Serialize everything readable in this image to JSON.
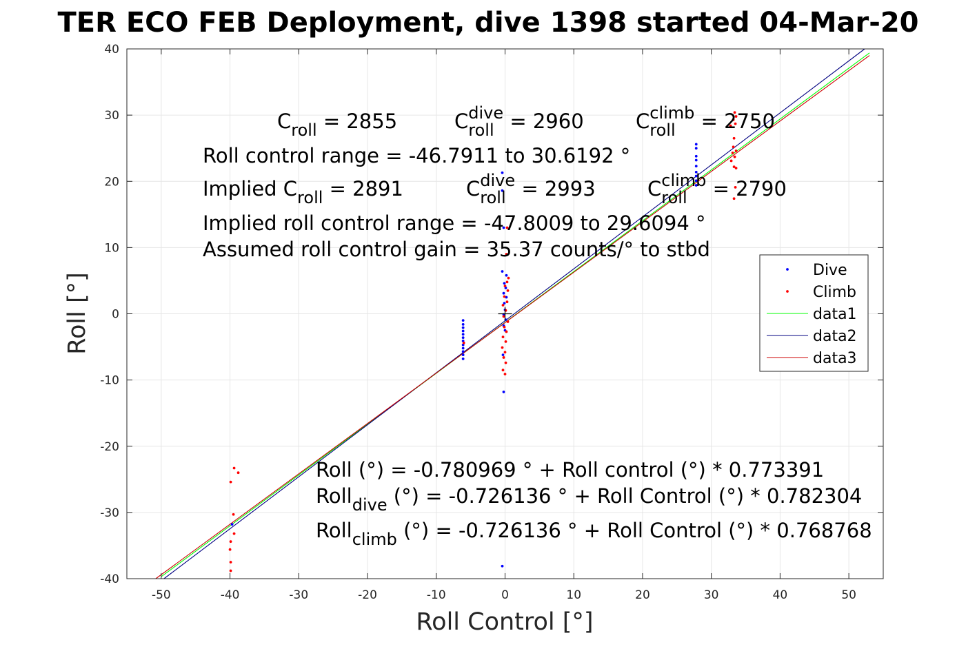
{
  "chart_data": {
    "type": "scatter",
    "title": "TER ECO FEB Deployment, dive 1398 started 04-Mar-20",
    "xlabel": "Roll Control [°]",
    "ylabel": "Roll [°]",
    "xlim": [
      -55,
      55
    ],
    "ylim": [
      -40,
      40
    ],
    "xticks": [
      -50,
      -40,
      -30,
      -20,
      -10,
      0,
      10,
      20,
      30,
      40,
      50
    ],
    "yticks": [
      -40,
      -30,
      -20,
      -10,
      0,
      10,
      20,
      30,
      40
    ],
    "grid": true,
    "legend_position": "right",
    "series": [
      {
        "name": "Dive",
        "kind": "points",
        "color": "#0000ff",
        "points": [
          [
            -6.1,
            -1.0
          ],
          [
            -6.1,
            -1.6
          ],
          [
            -6.1,
            -2.1
          ],
          [
            -6.1,
            -2.6
          ],
          [
            -6.1,
            -3.1
          ],
          [
            -6.1,
            -3.6
          ],
          [
            -6.1,
            -4.1
          ],
          [
            -6.1,
            -4.7
          ],
          [
            -6.1,
            -5.2
          ],
          [
            -6.1,
            -5.7
          ],
          [
            -6.1,
            -6.2
          ],
          [
            -6.1,
            -6.8
          ],
          [
            -0.4,
            21.3
          ],
          [
            -0.4,
            18.6
          ],
          [
            -0.2,
            13.0
          ],
          [
            -0.4,
            6.4
          ],
          [
            0.2,
            5.8
          ],
          [
            -0.1,
            4.6
          ],
          [
            0.1,
            3.9
          ],
          [
            -0.2,
            3.1
          ],
          [
            0.2,
            2.5
          ],
          [
            -0.1,
            1.6
          ],
          [
            0.0,
            0.6
          ],
          [
            -0.2,
            -0.1
          ],
          [
            0.1,
            -0.9
          ],
          [
            -0.2,
            -1.8
          ],
          [
            0.0,
            -2.5
          ],
          [
            -0.3,
            -6.2
          ],
          [
            -0.2,
            -11.8
          ],
          [
            -0.4,
            -38.1
          ],
          [
            27.8,
            25.6
          ],
          [
            27.8,
            25.0
          ],
          [
            27.8,
            23.8
          ],
          [
            27.8,
            23.2
          ],
          [
            27.8,
            22.3
          ],
          [
            27.8,
            21.4
          ],
          [
            27.8,
            20.8
          ],
          [
            27.8,
            20.1
          ],
          [
            27.8,
            19.4
          ],
          [
            -39.7,
            -31.8
          ]
        ]
      },
      {
        "name": "Climb",
        "kind": "points",
        "color": "#ff0000",
        "points": [
          [
            33.4,
            30.4
          ],
          [
            33.6,
            29.8
          ],
          [
            33.2,
            29.3
          ],
          [
            33.5,
            28.7
          ],
          [
            32.8,
            28.4
          ],
          [
            33.3,
            26.5
          ],
          [
            33.2,
            25.2
          ],
          [
            33.6,
            24.6
          ],
          [
            33.1,
            24.3
          ],
          [
            33.4,
            23.7
          ],
          [
            32.9,
            23.1
          ],
          [
            33.3,
            22.2
          ],
          [
            33.6,
            22.0
          ],
          [
            33.5,
            19.1
          ],
          [
            33.3,
            17.4
          ],
          [
            0.3,
            13.0
          ],
          [
            0.2,
            9.0
          ],
          [
            0.5,
            5.4
          ],
          [
            0.3,
            4.8
          ],
          [
            0.0,
            4.2
          ],
          [
            0.4,
            3.5
          ],
          [
            -0.1,
            2.6
          ],
          [
            0.3,
            1.8
          ],
          [
            -0.3,
            1.3
          ],
          [
            0.1,
            0.5
          ],
          [
            -0.2,
            -0.4
          ],
          [
            0.4,
            -1.2
          ],
          [
            -0.1,
            -2.0
          ],
          [
            0.2,
            -2.7
          ],
          [
            -0.3,
            -3.5
          ],
          [
            0.1,
            -4.2
          ],
          [
            -0.4,
            -5.1
          ],
          [
            0.0,
            -5.8
          ],
          [
            -0.2,
            -6.6
          ],
          [
            0.1,
            -7.4
          ],
          [
            -0.3,
            -8.5
          ],
          [
            0.0,
            -9.1
          ],
          [
            -6.0,
            -4.4
          ],
          [
            -39.4,
            -23.3
          ],
          [
            -38.8,
            -24.0
          ],
          [
            -39.9,
            -25.4
          ],
          [
            -39.5,
            -30.3
          ],
          [
            -39.4,
            -33.2
          ],
          [
            -39.9,
            -34.4
          ],
          [
            -40.0,
            -35.6
          ],
          [
            -39.9,
            -37.5
          ],
          [
            -39.9,
            -38.8
          ]
        ]
      },
      {
        "name": "data1",
        "kind": "line",
        "color": "#00ff00",
        "points": [
          [
            -50.0,
            -39.7
          ],
          [
            53.0,
            39.4
          ]
        ]
      },
      {
        "name": "data2",
        "kind": "line",
        "color": "#000080",
        "points": [
          [
            -49.6,
            -40.0
          ],
          [
            52.3,
            40.0
          ]
        ]
      },
      {
        "name": "data3",
        "kind": "line",
        "color": "#cc0000",
        "points": [
          [
            -50.8,
            -40.0
          ],
          [
            53.0,
            39.0
          ]
        ]
      }
    ],
    "cursor_mark": {
      "x": 0,
      "y": 0,
      "symbol": "+"
    },
    "annotations": {
      "top_row1": [
        {
          "base": "C",
          "sub": "roll",
          "sup": "",
          "value": " = 2855"
        },
        {
          "base": "C",
          "sub": "roll",
          "sup": "dive",
          "value": " = 2960"
        },
        {
          "base": "C",
          "sub": "roll",
          "sup": "climb",
          "value": " = 2750"
        }
      ],
      "range_line": "Roll control range = -46.7911 to 30.6192 °",
      "top_row2": [
        {
          "base": "Implied C",
          "sub": "roll",
          "sup": "",
          "value": " = 2891"
        },
        {
          "base": "C",
          "sub": "roll",
          "sup": "dive",
          "value": " = 2993"
        },
        {
          "base": "C",
          "sub": "roll",
          "sup": "climb",
          "value": " = 2790"
        }
      ],
      "implied_range_line": "Implied roll control range = -47.8009 to 29.6094 °",
      "gain_line": "Assumed roll control gain = 35.37 counts/° to stbd",
      "fit_line": "Roll (°) = -0.780969 ° + Roll control (°) * 0.773391",
      "fit_dive": {
        "base": "Roll",
        "sub": "dive",
        "rest": " (°) = -0.726136 ° + Roll Control (°) * 0.782304"
      },
      "fit_climb": {
        "base": "Roll",
        "sub": "climb",
        "rest": " (°) = -0.726136 ° + Roll Control (°) * 0.768768"
      }
    }
  }
}
